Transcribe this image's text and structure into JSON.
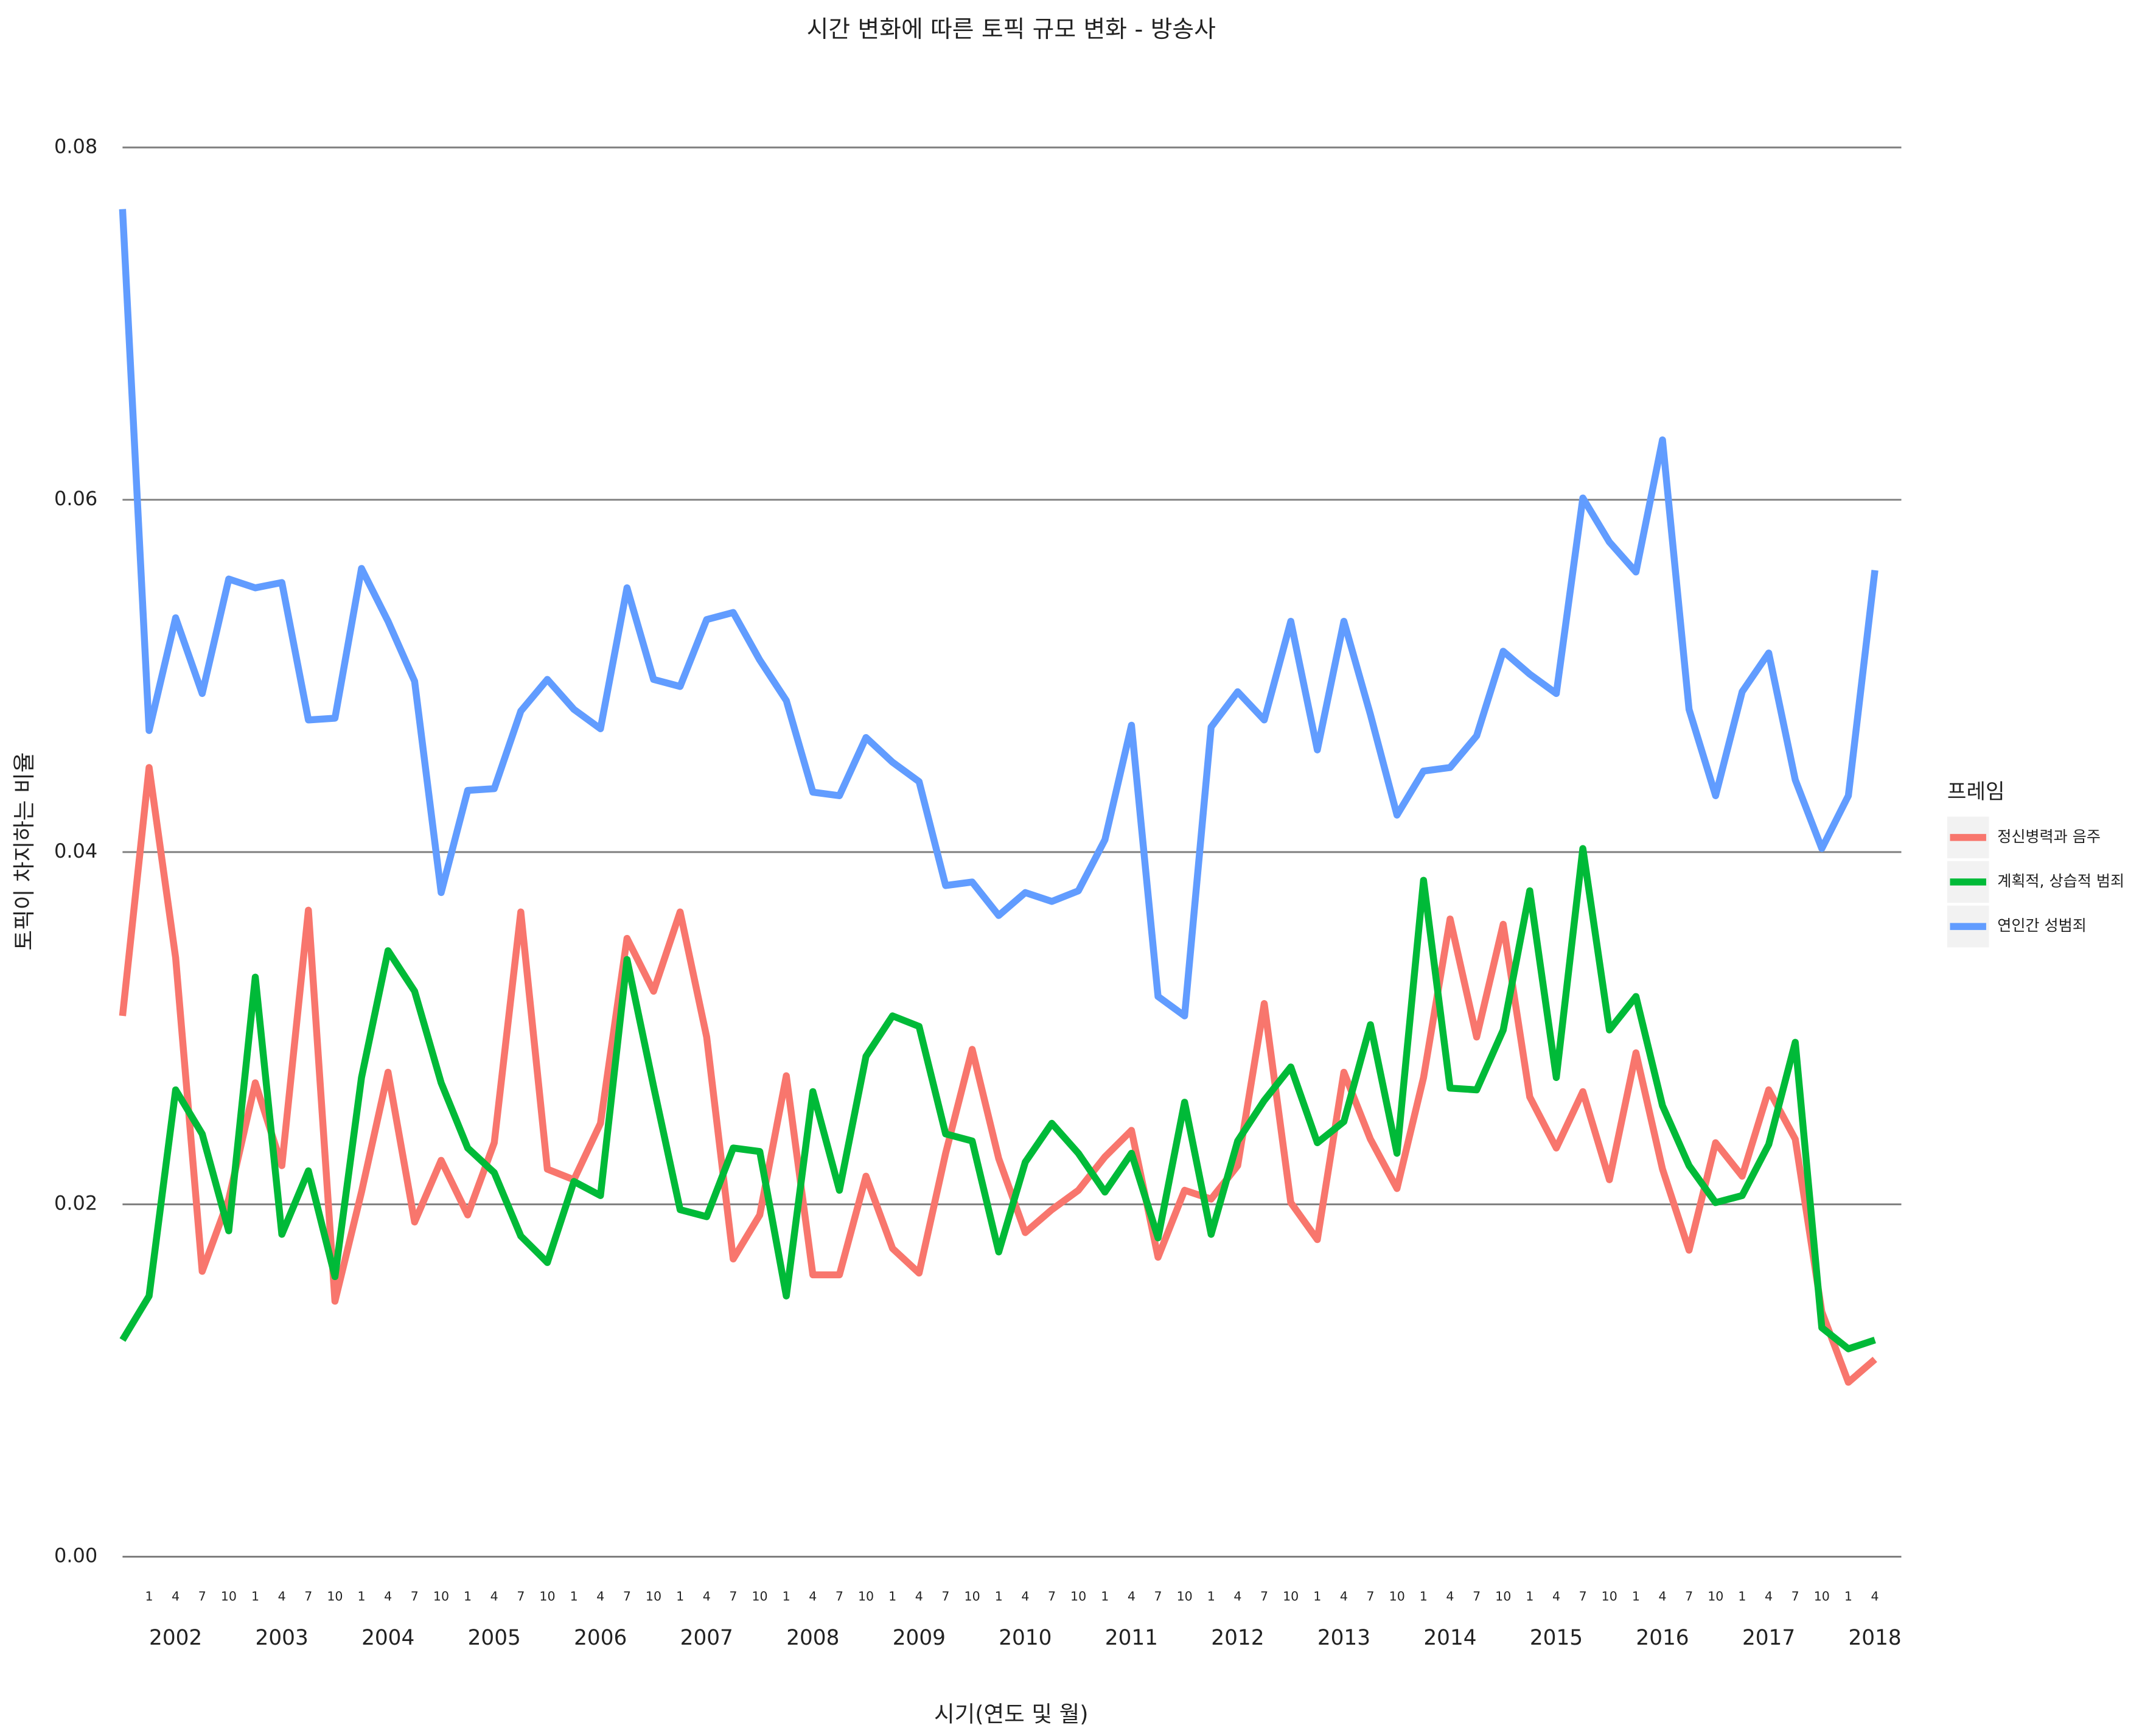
{
  "chart_data": {
    "type": "line",
    "title": "시간 변화에 따른 토픽 규모 변화 - 방송사",
    "x_label": "시기(연도 및 월)",
    "y_label": "토픽이 차지하는 비율",
    "categories": [
      null,
      "1",
      "4",
      "7",
      "10",
      "1",
      "4",
      "7",
      "10",
      "1",
      "4",
      "7",
      "10",
      "1",
      "4",
      "7",
      "10",
      "1",
      "4",
      "7",
      "10",
      "1",
      "4",
      "7",
      "10",
      "1",
      "4",
      "7",
      "10",
      "1",
      "4",
      "7",
      "10",
      "1",
      "4",
      "7",
      "10",
      "1",
      "4",
      "7",
      "10",
      "1",
      "4",
      "7",
      "10",
      "1",
      "4",
      "7",
      "10",
      "1",
      "4",
      "7",
      "10",
      "1",
      "4",
      "7",
      "10",
      "1",
      "4",
      "7",
      "10",
      "1",
      "4",
      "7",
      "10",
      "1",
      "4"
    ],
    "category_groups": [
      "2002",
      "2003",
      "2004",
      "2005",
      "2006",
      "2007",
      "2008",
      "2009",
      "2010",
      "2011",
      "2012",
      "2013",
      "2014",
      "2015",
      "2016",
      "2017",
      "2018"
    ],
    "ylim": [
      0,
      0.08
    ],
    "yticks": [
      {
        "value": 0,
        "label": "0.00"
      },
      {
        "value": 0.02,
        "label": "0.02"
      },
      {
        "value": 0.04,
        "label": "0.04"
      },
      {
        "value": 0.06,
        "label": "0.06"
      },
      {
        "value": 0.08,
        "label": "0.08"
      }
    ],
    "grid": true,
    "legend_title": "프레임",
    "legend_position": "right",
    "series": [
      {
        "name": "정신병력과 음주",
        "color": "#F8766D",
        "values": [
          0.0307,
          0.0448,
          0.034,
          0.0162,
          0.0203,
          0.0269,
          0.0222,
          0.0367,
          0.0145,
          0.0207,
          0.0275,
          0.019,
          0.0225,
          0.0194,
          0.0235,
          0.0366,
          0.022,
          0.0214,
          0.0246,
          0.0351,
          0.0321,
          0.0366,
          0.0295,
          0.0169,
          0.0194,
          0.0273,
          0.016,
          0.016,
          0.0216,
          0.0175,
          0.0161,
          0.0229,
          0.0288,
          0.0226,
          0.0184,
          0.0197,
          0.0208,
          0.0227,
          0.0242,
          0.017,
          0.0208,
          0.0203,
          0.0222,
          0.0314,
          0.0201,
          0.018,
          0.0275,
          0.0237,
          0.0209,
          0.0272,
          0.0362,
          0.0295,
          0.0359,
          0.0261,
          0.0232,
          0.0264,
          0.0214,
          0.0286,
          0.022,
          0.0174,
          0.0235,
          0.0216,
          0.0265,
          0.0237,
          0.0139,
          0.0099,
          0.0112
        ]
      },
      {
        "name": "계획적, 상습적 범죄",
        "color": "#00BA38",
        "values": [
          0.0123,
          0.0148,
          0.0265,
          0.024,
          0.0185,
          0.0329,
          0.0183,
          0.0219,
          0.0159,
          0.0272,
          0.0344,
          0.0321,
          0.0269,
          0.0232,
          0.0218,
          0.0182,
          0.0167,
          0.0213,
          0.0205,
          0.0339,
          0.0267,
          0.0197,
          0.0193,
          0.0232,
          0.023,
          0.0148,
          0.0264,
          0.0208,
          0.0284,
          0.0307,
          0.0301,
          0.024,
          0.0236,
          0.0173,
          0.0224,
          0.0246,
          0.0229,
          0.0207,
          0.0229,
          0.0181,
          0.0258,
          0.0183,
          0.0236,
          0.0259,
          0.0278,
          0.0235,
          0.0247,
          0.0302,
          0.0229,
          0.0384,
          0.0266,
          0.0265,
          0.0299,
          0.0378,
          0.0272,
          0.0402,
          0.0299,
          0.0318,
          0.0256,
          0.0222,
          0.0201,
          0.0205,
          0.0234,
          0.0292,
          0.013,
          0.0118,
          0.0123
        ]
      },
      {
        "name": "연인간 성범죄",
        "color": "#619CFF",
        "values": [
          0.0765,
          0.0469,
          0.0533,
          0.049,
          0.0555,
          0.055,
          0.0553,
          0.0475,
          0.0476,
          0.0561,
          0.0531,
          0.0497,
          0.0377,
          0.0435,
          0.0436,
          0.048,
          0.0498,
          0.0481,
          0.047,
          0.055,
          0.0498,
          0.0494,
          0.0532,
          0.0536,
          0.0509,
          0.0486,
          0.0434,
          0.0432,
          0.0465,
          0.0451,
          0.044,
          0.0381,
          0.0383,
          0.0364,
          0.0377,
          0.0372,
          0.0378,
          0.0407,
          0.0472,
          0.0318,
          0.0307,
          0.0471,
          0.0491,
          0.0475,
          0.0531,
          0.0458,
          0.0531,
          0.0478,
          0.0421,
          0.0446,
          0.0448,
          0.0466,
          0.0514,
          0.0501,
          0.049,
          0.0601,
          0.0576,
          0.0559,
          0.0634,
          0.0481,
          0.0432,
          0.0491,
          0.0513,
          0.0441,
          0.0402,
          0.0432,
          0.056
        ]
      }
    ]
  }
}
